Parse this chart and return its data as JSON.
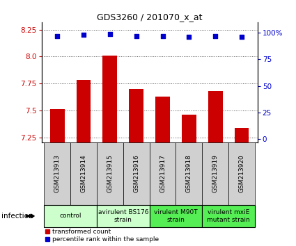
{
  "title": "GDS3260 / 201070_x_at",
  "samples": [
    "GSM213913",
    "GSM213914",
    "GSM213915",
    "GSM213916",
    "GSM213917",
    "GSM213918",
    "GSM213919",
    "GSM213920"
  ],
  "bar_values": [
    7.51,
    7.78,
    8.01,
    7.7,
    7.63,
    7.46,
    7.68,
    7.34
  ],
  "dot_values": [
    97,
    98,
    99,
    97,
    97,
    96,
    97,
    96
  ],
  "ylim_left": [
    7.2,
    8.32
  ],
  "yticks_left": [
    7.25,
    7.5,
    7.75,
    8.0,
    8.25
  ],
  "ylim_right": [
    -3.5,
    110
  ],
  "yticks_right": [
    0,
    25,
    50,
    75,
    100
  ],
  "bar_color": "#cc0000",
  "dot_color": "#0000cc",
  "bar_baseline": 7.2,
  "groups": [
    {
      "label": "control",
      "start": 0,
      "end": 2,
      "color": "#ccffcc"
    },
    {
      "label": "avirulent BS176\nstrain",
      "start": 2,
      "end": 4,
      "color": "#ccffcc"
    },
    {
      "label": "virulent M90T\nstrain",
      "start": 4,
      "end": 6,
      "color": "#55ee55"
    },
    {
      "label": "virulent mxiE\nmutant strain",
      "start": 6,
      "end": 8,
      "color": "#55ee55"
    }
  ],
  "legend_bar_label": "transformed count",
  "legend_dot_label": "percentile rank within the sample",
  "infection_label": "infection",
  "background_color": "#ffffff",
  "plot_bg_color": "#ffffff",
  "tick_label_color_left": "#cc0000",
  "tick_label_color_right": "#0000cc",
  "grid_color": "#555555",
  "group_label_fontsize": 6.5,
  "sample_label_fontsize": 6.5,
  "title_fontsize": 9
}
